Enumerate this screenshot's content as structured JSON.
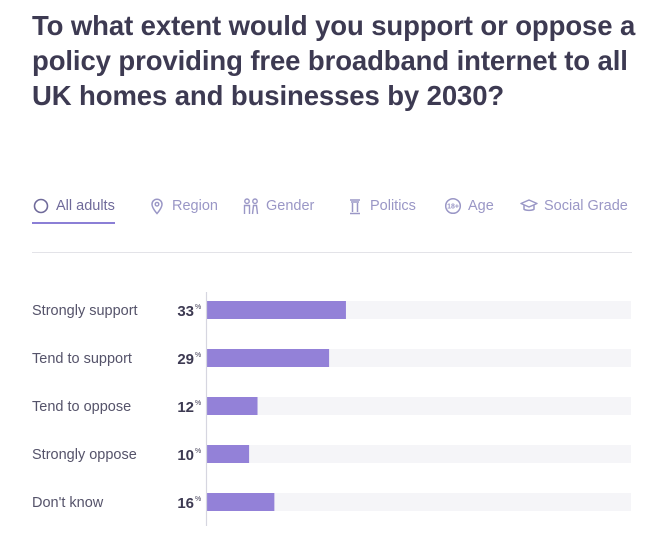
{
  "title": "To what extent would you support or oppose a policy providing free broadband internet to all UK homes and businesses by 2030?",
  "tabs": [
    {
      "label": "All adults",
      "icon": "circle-icon",
      "active": true
    },
    {
      "label": "Region",
      "icon": "map-pin-icon",
      "active": false
    },
    {
      "label": "Gender",
      "icon": "gender-icon",
      "active": false
    },
    {
      "label": "Politics",
      "icon": "pillar-icon",
      "active": false
    },
    {
      "label": "Age",
      "icon": "age-icon",
      "active": false
    },
    {
      "label": "Social Grade",
      "icon": "graduation-cap-icon",
      "active": false
    }
  ],
  "colors": {
    "bar": "#9381d8",
    "track": "#f5f5f8",
    "accent": "#8b7fd6",
    "axis": "#d6d6e0"
  },
  "chart_data": {
    "type": "bar",
    "orientation": "horizontal",
    "categories": [
      "Strongly support",
      "Tend to support",
      "Tend to oppose",
      "Strongly oppose",
      "Don't know"
    ],
    "values": [
      33,
      29,
      12,
      10,
      16
    ],
    "value_suffix": "%",
    "xlim": [
      0,
      100
    ]
  }
}
